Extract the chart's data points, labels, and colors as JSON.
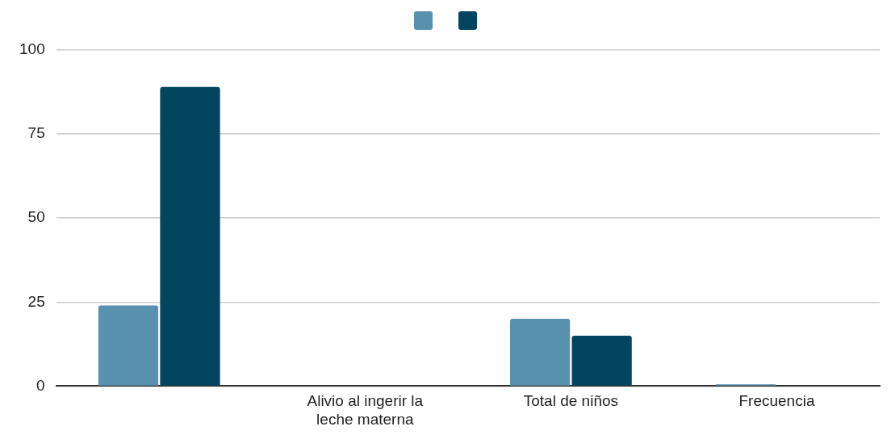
{
  "chart_data": {
    "type": "bar",
    "categories": [
      null,
      "Alivio al ingerir la leche materna",
      "Total de niños",
      "Frecuencia"
    ],
    "series": [
      {
        "color": "#5891ae",
        "values": [
          24,
          0,
          20,
          0.5
        ]
      },
      {
        "color": "#03445f",
        "values": [
          89,
          0,
          15,
          0
        ]
      }
    ],
    "ylim": [
      0,
      100
    ],
    "yticks": [
      0,
      25,
      50,
      75,
      100
    ],
    "grid": "y"
  }
}
